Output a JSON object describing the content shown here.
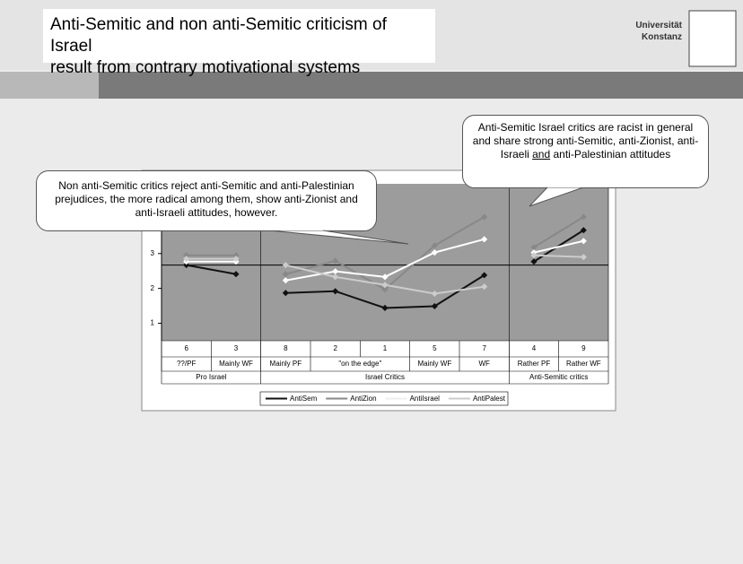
{
  "header": {
    "title_lines": [
      "Anti-Semitic and non anti-Semitic criticism of Israel",
      "result from contrary motivational systems"
    ],
    "university_lines": [
      "Universität",
      "Konstanz"
    ]
  },
  "callouts": [
    {
      "text": "Non anti-Semitic critics reject anti-Semitic and anti-Palestinian prejudices, the more radical among them, show anti-Zionist and anti-Israeli attitudes, however."
    },
    {
      "text_parts": [
        "Anti-Semitic Israel critics are racist in general and share strong anti-Semitic, anti-Zionist, anti-Israeli ",
        "and",
        " anti-Palestinian attitudes"
      ]
    }
  ],
  "chart_data": {
    "type": "line",
    "categories": [
      "6",
      "3",
      "8",
      "2",
      "1",
      "5",
      "7",
      "4",
      "9"
    ],
    "subcategories": [
      "??/PF",
      "Mainly WF",
      "Mainly PF",
      "\"on the edge\"",
      "\"on the edge\"",
      "Mainly WF",
      "WF",
      "Rather PF",
      "Rather WF"
    ],
    "groups": [
      "Pro Israel",
      "Pro Israel",
      "Israel Critics",
      "Israel Critics",
      "Israel Critics",
      "Israel Critics",
      "Israel Critics",
      "Anti-Semitic critics",
      "Anti-Semitic critics"
    ],
    "series": [
      {
        "name": "AntiSem",
        "color": "#111111",
        "values": [
          2.67,
          2.41,
          1.87,
          1.92,
          1.44,
          1.49,
          2.38,
          2.77,
          3.67
        ]
      },
      {
        "name": "AntiZion",
        "color": "#888888",
        "values": [
          2.95,
          2.95,
          2.41,
          2.79,
          1.97,
          3.23,
          4.05,
          3.18,
          4.05
        ]
      },
      {
        "name": "AntiIsrael",
        "color": "#ffffff",
        "values": [
          2.77,
          2.77,
          2.23,
          2.49,
          2.33,
          3.03,
          3.41,
          3.03,
          3.36
        ]
      },
      {
        "name": "AntiPalest",
        "color": "#cccccc",
        "values": [
          2.85,
          2.85,
          2.67,
          2.33,
          2.1,
          1.85,
          2.05,
          2.95,
          2.9
        ]
      }
    ],
    "ylim": [
      0.5,
      5
    ],
    "yticks": [
      1,
      2,
      3
    ],
    "reference_line": 2.67
  }
}
